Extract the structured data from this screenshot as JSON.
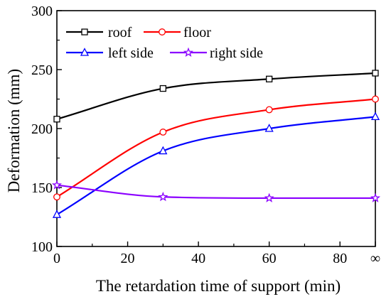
{
  "chart_data": {
    "type": "line",
    "title": "",
    "xlabel": "The retardation time of support (min)",
    "ylabel": "Deformation (mm)",
    "xlim": [
      0,
      90
    ],
    "ylim": [
      100,
      300
    ],
    "x_ticks": [
      {
        "value": 0,
        "label": "0"
      },
      {
        "value": 20,
        "label": "20"
      },
      {
        "value": 40,
        "label": "40"
      },
      {
        "value": 60,
        "label": "60"
      },
      {
        "value": 80,
        "label": "80"
      },
      {
        "value": 90,
        "label": "∞"
      }
    ],
    "y_ticks": [
      {
        "value": 100,
        "label": "100"
      },
      {
        "value": 150,
        "label": "150"
      },
      {
        "value": 200,
        "label": "200"
      },
      {
        "value": 250,
        "label": "250"
      },
      {
        "value": 300,
        "label": "300"
      }
    ],
    "grid": false,
    "legend_position": "top-left",
    "series": [
      {
        "name": "roof",
        "color": "#000000",
        "marker": "square",
        "x": [
          0,
          30,
          60,
          90
        ],
        "y": [
          208,
          234,
          242,
          247
        ]
      },
      {
        "name": "floor",
        "color": "#ff0000",
        "marker": "circle",
        "x": [
          0,
          30,
          60,
          90
        ],
        "y": [
          142,
          197,
          216,
          225
        ]
      },
      {
        "name": "left side",
        "color": "#0000ff",
        "marker": "triangle",
        "x": [
          0,
          30,
          60,
          90
        ],
        "y": [
          127,
          181,
          200,
          210
        ]
      },
      {
        "name": "right side",
        "color": "#8b00ff",
        "marker": "star",
        "x": [
          0,
          30,
          60,
          90
        ],
        "y": [
          152,
          142,
          141,
          141
        ]
      }
    ]
  }
}
